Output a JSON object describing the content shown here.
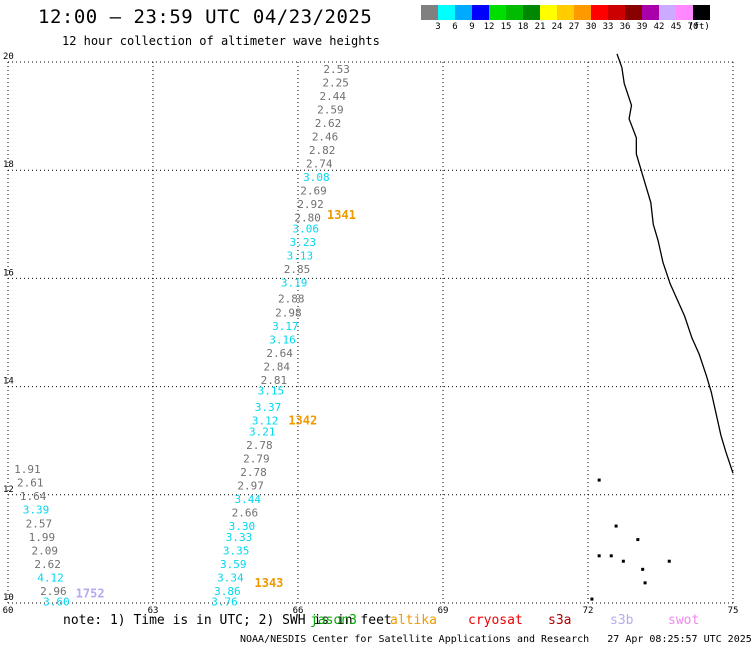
{
  "header": {
    "title": "12:00 – 23:59 UTC 04/23/2025",
    "subtitle": "12 hour collection of altimeter wave heights"
  },
  "color_scale": {
    "colors": [
      "#808080",
      "#00ffff",
      "#00aaff",
      "#0000ff",
      "#00dd00",
      "#00bb00",
      "#008800",
      "#ffff00",
      "#ffcc00",
      "#ff9900",
      "#ff0000",
      "#cc0000",
      "#880000",
      "#aa00aa",
      "#ccaaff",
      "#ff88ff",
      "#000000"
    ],
    "labels": [
      "3",
      "6",
      "9",
      "12",
      "15",
      "18",
      "21",
      "24",
      "27",
      "30",
      "33",
      "36",
      "39",
      "42",
      "45",
      "70",
      "(ft)"
    ]
  },
  "map": {
    "lon_ticks": [
      "60",
      "63",
      "66",
      "69",
      "72",
      "75"
    ],
    "lat_ticks": [
      "20",
      "18",
      "16",
      "14",
      "12",
      "10"
    ],
    "colors": {
      "gray": "#707070",
      "cyan": "#00d8f0",
      "orange": "#ee9900",
      "lavender": "#b8a8f0"
    },
    "passes": [
      {
        "label": "1341",
        "color": "orange",
        "lon": 66.6,
        "lat": 17.1
      },
      {
        "label": "1342",
        "color": "orange",
        "lon": 65.8,
        "lat": 13.3
      },
      {
        "label": "1343",
        "color": "orange",
        "lon": 65.1,
        "lat": 10.3
      },
      {
        "label": "1752",
        "color": "lavender",
        "lon": 61.4,
        "lat": 10.1
      }
    ],
    "readings": [
      {
        "text": "2.53",
        "color": "gray",
        "lon": 66.8,
        "lat": 19.8
      },
      {
        "text": "2.25",
        "color": "gray",
        "lon": 66.78,
        "lat": 19.55
      },
      {
        "text": "2.44",
        "color": "gray",
        "lon": 66.72,
        "lat": 19.3
      },
      {
        "text": "2.59",
        "color": "gray",
        "lon": 66.67,
        "lat": 19.05
      },
      {
        "text": "2.62",
        "color": "gray",
        "lon": 66.62,
        "lat": 18.8
      },
      {
        "text": "2.46",
        "color": "gray",
        "lon": 66.56,
        "lat": 18.55
      },
      {
        "text": "2.82",
        "color": "gray",
        "lon": 66.5,
        "lat": 18.3
      },
      {
        "text": "2.74",
        "color": "gray",
        "lon": 66.44,
        "lat": 18.05
      },
      {
        "text": "3.08",
        "color": "cyan",
        "lon": 66.38,
        "lat": 17.8
      },
      {
        "text": "2.69",
        "color": "gray",
        "lon": 66.32,
        "lat": 17.55
      },
      {
        "text": "2.92",
        "color": "gray",
        "lon": 66.26,
        "lat": 17.3
      },
      {
        "text": "2.80",
        "color": "gray",
        "lon": 66.2,
        "lat": 17.05
      },
      {
        "text": "3.06",
        "color": "cyan",
        "lon": 66.16,
        "lat": 16.85
      },
      {
        "text": "3.23",
        "color": "cyan",
        "lon": 66.1,
        "lat": 16.6
      },
      {
        "text": "3.13",
        "color": "cyan",
        "lon": 66.04,
        "lat": 16.35
      },
      {
        "text": "2.85",
        "color": "gray",
        "lon": 65.98,
        "lat": 16.1
      },
      {
        "text": "3.19",
        "color": "cyan",
        "lon": 65.92,
        "lat": 15.85
      },
      {
        "text": "2.88",
        "color": "gray",
        "lon": 65.86,
        "lat": 15.55
      },
      {
        "text": "2.98",
        "color": "gray",
        "lon": 65.8,
        "lat": 15.3
      },
      {
        "text": "3.17",
        "color": "cyan",
        "lon": 65.74,
        "lat": 15.05
      },
      {
        "text": "3.16",
        "color": "cyan",
        "lon": 65.68,
        "lat": 14.8
      },
      {
        "text": "2.64",
        "color": "gray",
        "lon": 65.62,
        "lat": 14.55
      },
      {
        "text": "2.84",
        "color": "gray",
        "lon": 65.56,
        "lat": 14.3
      },
      {
        "text": "2.81",
        "color": "gray",
        "lon": 65.5,
        "lat": 14.05
      },
      {
        "text": "3.15",
        "color": "cyan",
        "lon": 65.44,
        "lat": 13.85
      },
      {
        "text": "3.37",
        "color": "cyan",
        "lon": 65.38,
        "lat": 13.55
      },
      {
        "text": "3.12",
        "color": "cyan",
        "lon": 65.32,
        "lat": 13.3
      },
      {
        "text": "3.21",
        "color": "cyan",
        "lon": 65.26,
        "lat": 13.1
      },
      {
        "text": "2.78",
        "color": "gray",
        "lon": 65.2,
        "lat": 12.85
      },
      {
        "text": "2.79",
        "color": "gray",
        "lon": 65.14,
        "lat": 12.6
      },
      {
        "text": "2.78",
        "color": "gray",
        "lon": 65.08,
        "lat": 12.35
      },
      {
        "text": "2.97",
        "color": "gray",
        "lon": 65.02,
        "lat": 12.1
      },
      {
        "text": "3.44",
        "color": "cyan",
        "lon": 64.96,
        "lat": 11.85
      },
      {
        "text": "2.66",
        "color": "gray",
        "lon": 64.9,
        "lat": 11.6
      },
      {
        "text": "3.30",
        "color": "cyan",
        "lon": 64.84,
        "lat": 11.35
      },
      {
        "text": "3.33",
        "color": "cyan",
        "lon": 64.78,
        "lat": 11.15
      },
      {
        "text": "3.35",
        "color": "cyan",
        "lon": 64.72,
        "lat": 10.9
      },
      {
        "text": "3.59",
        "color": "cyan",
        "lon": 64.66,
        "lat": 10.65
      },
      {
        "text": "3.34",
        "color": "cyan",
        "lon": 64.6,
        "lat": 10.4
      },
      {
        "text": "3.86",
        "color": "cyan",
        "lon": 64.54,
        "lat": 10.15
      },
      {
        "text": "3.76",
        "color": "cyan",
        "lon": 64.48,
        "lat": 9.95
      },
      {
        "text": "1.91",
        "color": "gray",
        "lon": 60.4,
        "lat": 12.4
      },
      {
        "text": "2.61",
        "color": "gray",
        "lon": 60.46,
        "lat": 12.15
      },
      {
        "text": "1.64",
        "color": "gray",
        "lon": 60.52,
        "lat": 11.9
      },
      {
        "text": "3.39",
        "color": "cyan",
        "lon": 60.58,
        "lat": 11.65
      },
      {
        "text": "2.57",
        "color": "gray",
        "lon": 60.64,
        "lat": 11.4
      },
      {
        "text": "1.99",
        "color": "gray",
        "lon": 60.7,
        "lat": 11.15
      },
      {
        "text": "2.09",
        "color": "gray",
        "lon": 60.76,
        "lat": 10.9
      },
      {
        "text": "2.62",
        "color": "gray",
        "lon": 60.82,
        "lat": 10.65
      },
      {
        "text": "4.12",
        "color": "cyan",
        "lon": 60.88,
        "lat": 10.4
      },
      {
        "text": "2.96",
        "color": "gray",
        "lon": 60.94,
        "lat": 10.15
      },
      {
        "text": "3.60",
        "color": "cyan",
        "lon": 61.0,
        "lat": 9.95
      }
    ],
    "coast": [
      [
        72.6,
        20.15
      ],
      [
        72.7,
        19.9
      ],
      [
        72.75,
        19.6
      ],
      [
        72.9,
        19.2
      ],
      [
        72.85,
        18.95
      ],
      [
        73.0,
        18.6
      ],
      [
        73.0,
        18.3
      ],
      [
        73.1,
        18.0
      ],
      [
        73.2,
        17.7
      ],
      [
        73.3,
        17.4
      ],
      [
        73.35,
        17.0
      ],
      [
        73.45,
        16.7
      ],
      [
        73.55,
        16.3
      ],
      [
        73.7,
        15.9
      ],
      [
        73.85,
        15.6
      ],
      [
        74.0,
        15.3
      ],
      [
        74.15,
        14.9
      ],
      [
        74.3,
        14.6
      ],
      [
        74.45,
        14.2
      ],
      [
        74.55,
        13.9
      ],
      [
        74.65,
        13.5
      ],
      [
        74.75,
        13.1
      ],
      [
        74.85,
        12.8
      ],
      [
        75.0,
        12.4
      ]
    ],
    "islands": [
      [
        72.2,
        12.3
      ],
      [
        72.05,
        10.1
      ],
      [
        72.55,
        11.45
      ],
      [
        72.7,
        10.8
      ],
      [
        73.0,
        11.2
      ],
      [
        73.1,
        10.65
      ],
      [
        72.2,
        10.9
      ],
      [
        73.65,
        10.8
      ],
      [
        72.45,
        10.9
      ],
      [
        73.15,
        10.4
      ]
    ]
  },
  "footer": {
    "note": "note: 1) Time is in UTC; 2) SWH is in feet",
    "missions": [
      {
        "name": "jason3",
        "color": "#00aa00"
      },
      {
        "name": "altika",
        "color": "#ee9900"
      },
      {
        "name": "cryosat",
        "color": "#ee0000"
      },
      {
        "name": "s3a",
        "color": "#aa0000"
      },
      {
        "name": "s3b",
        "color": "#b8a8f0"
      },
      {
        "name": "swot",
        "color": "#ee88ee"
      }
    ],
    "credit": "NOAA/NESDIS Center for Satellite Applications and Research",
    "timestamp": "27 Apr 08:25:57 UTC 2025"
  }
}
